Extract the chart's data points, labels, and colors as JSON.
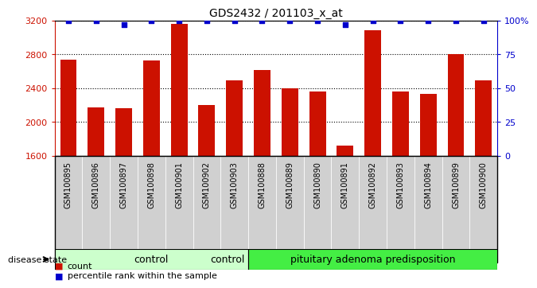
{
  "title": "GDS2432 / 201103_x_at",
  "samples": [
    "GSM100895",
    "GSM100896",
    "GSM100897",
    "GSM100898",
    "GSM100901",
    "GSM100902",
    "GSM100903",
    "GSM100888",
    "GSM100889",
    "GSM100890",
    "GSM100891",
    "GSM100892",
    "GSM100893",
    "GSM100894",
    "GSM100899",
    "GSM100900"
  ],
  "counts": [
    2740,
    2170,
    2160,
    2730,
    3160,
    2200,
    2490,
    2620,
    2400,
    2360,
    1720,
    3090,
    2360,
    2330,
    2800,
    2490
  ],
  "percentiles": [
    100,
    100,
    97,
    100,
    100,
    100,
    100,
    100,
    100,
    100,
    97,
    100,
    100,
    100,
    100,
    100
  ],
  "n_control": 7,
  "bar_color": "#cc1100",
  "percentile_color": "#0000cc",
  "ylim_left": [
    1600,
    3200
  ],
  "ylim_right": [
    0,
    100
  ],
  "yticks_left": [
    1600,
    2000,
    2400,
    2800,
    3200
  ],
  "ytick_labels_left": [
    "1600",
    "2000",
    "2400",
    "2800",
    "3200"
  ],
  "yticks_right": [
    0,
    25,
    50,
    75,
    100
  ],
  "ytick_labels_right": [
    "0",
    "25",
    "50",
    "75",
    "100%"
  ],
  "control_color": "#ccffcc",
  "pituitary_color": "#44ee44",
  "disease_state_label": "disease state",
  "control_label": "control",
  "pituitary_label": "pituitary adenoma predisposition",
  "legend_count": "count",
  "legend_percentile": "percentile rank within the sample",
  "grid_yticks": [
    2000,
    2400,
    2800,
    3200
  ]
}
